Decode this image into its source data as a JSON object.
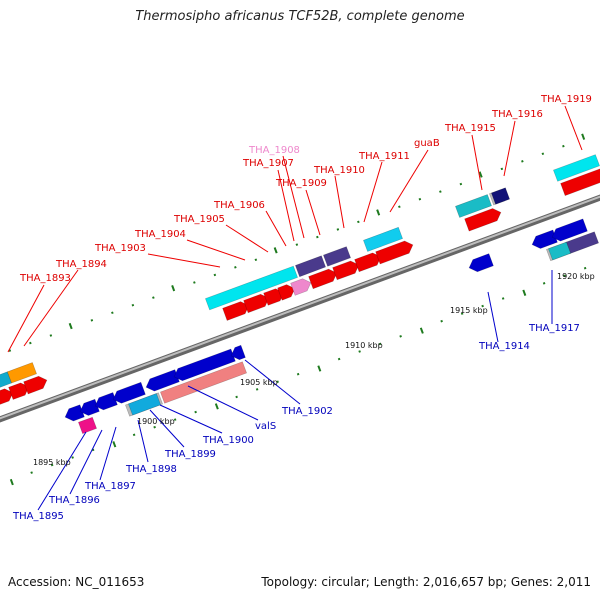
{
  "title": "Thermosipho africanus TCF52B, complete genome",
  "footer": {
    "accession": "Accession: NC_011653",
    "info": "Topology: circular; Length: 2,016,657 bp; Genes: 2,011"
  },
  "colors": {
    "forward": "#ee0000",
    "reverse": "#0000cc",
    "pseudo": "#ee88cc",
    "cyan": "#00e5ee",
    "teal": "#1abcc6",
    "navy": "#4a3a8c",
    "orange": "#ff9900",
    "salmon": "#f08080",
    "grey": "#bbbbbb",
    "magenta": "#ee1188",
    "backbone": "#888888",
    "tick": "#1e7a1e"
  },
  "scale_labels": [
    "1895 kbp",
    "1900 kbp",
    "1905 kbp",
    "1910 kbp",
    "1915 kbp",
    "1920 kbp"
  ],
  "forward_labels": [
    "THA_1893",
    "THA_1894",
    "THA_1903",
    "THA_1904",
    "THA_1905",
    "THA_1906",
    "THA_1907",
    "THA_1908",
    "THA_1909",
    "THA_1910",
    "THA_1911",
    "guaB",
    "THA_1915",
    "THA_1916",
    "THA_1919"
  ],
  "reverse_labels": [
    "THA_1895",
    "THA_1896",
    "THA_1897",
    "THA_1898",
    "THA_1899",
    "THA_1900",
    "valS",
    "THA_1902",
    "THA_1914",
    "THA_1917"
  ]
}
